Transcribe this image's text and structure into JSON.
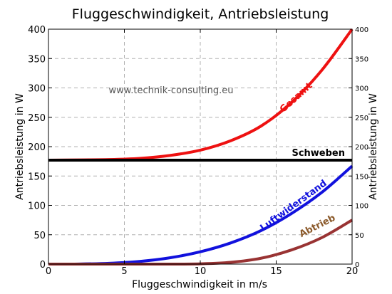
{
  "chart_data": {
    "type": "line",
    "title": "Fluggeschwindigkeit, Antriebsleistung",
    "xlabel": "Fluggeschwindigkeit in m/s",
    "ylabel": "Antriebsleistung in W",
    "ylabel_right": "Antriebsleistung in W",
    "xlim": [
      0,
      20
    ],
    "ylim": [
      0,
      400
    ],
    "x_ticks": [
      "0",
      "5",
      "10",
      "15",
      "20"
    ],
    "y_ticks": [
      "0",
      "50",
      "100",
      "150",
      "200",
      "250",
      "300",
      "350",
      "400"
    ],
    "grid": true,
    "watermark": "www.technik-consulting.eu",
    "series": [
      {
        "name": "Gesamt",
        "color": "#ee1111",
        "x": [
          0,
          2,
          4,
          6,
          8,
          10,
          12,
          14,
          16,
          18,
          20
        ],
        "y": [
          177,
          177.5,
          178,
          180,
          185,
          194,
          210,
          235,
          275,
          330,
          400
        ]
      },
      {
        "name": "Schweben",
        "color": "#000000",
        "x": [
          0,
          20
        ],
        "y": [
          177,
          177
        ]
      },
      {
        "name": "Luftwiderstand",
        "color": "#1111dd",
        "x": [
          0,
          2,
          4,
          6,
          8,
          10,
          12,
          14,
          16,
          18,
          20
        ],
        "y": [
          0,
          0.2,
          1.4,
          4.6,
          10.8,
          21,
          36,
          57,
          86,
          122,
          167
        ]
      },
      {
        "name": "Abtrieb",
        "color": "#993333",
        "x": [
          0,
          6,
          8,
          10,
          12,
          14,
          16,
          18,
          20
        ],
        "y": [
          0,
          0,
          0,
          0.5,
          3,
          10,
          24,
          45,
          75
        ]
      }
    ],
    "label_colors": {
      "Gesamt": "#ee1111",
      "Schweben": "#000000",
      "Luftwiderstand": "#1111dd",
      "Abtrieb": "#8b5a2b"
    }
  }
}
